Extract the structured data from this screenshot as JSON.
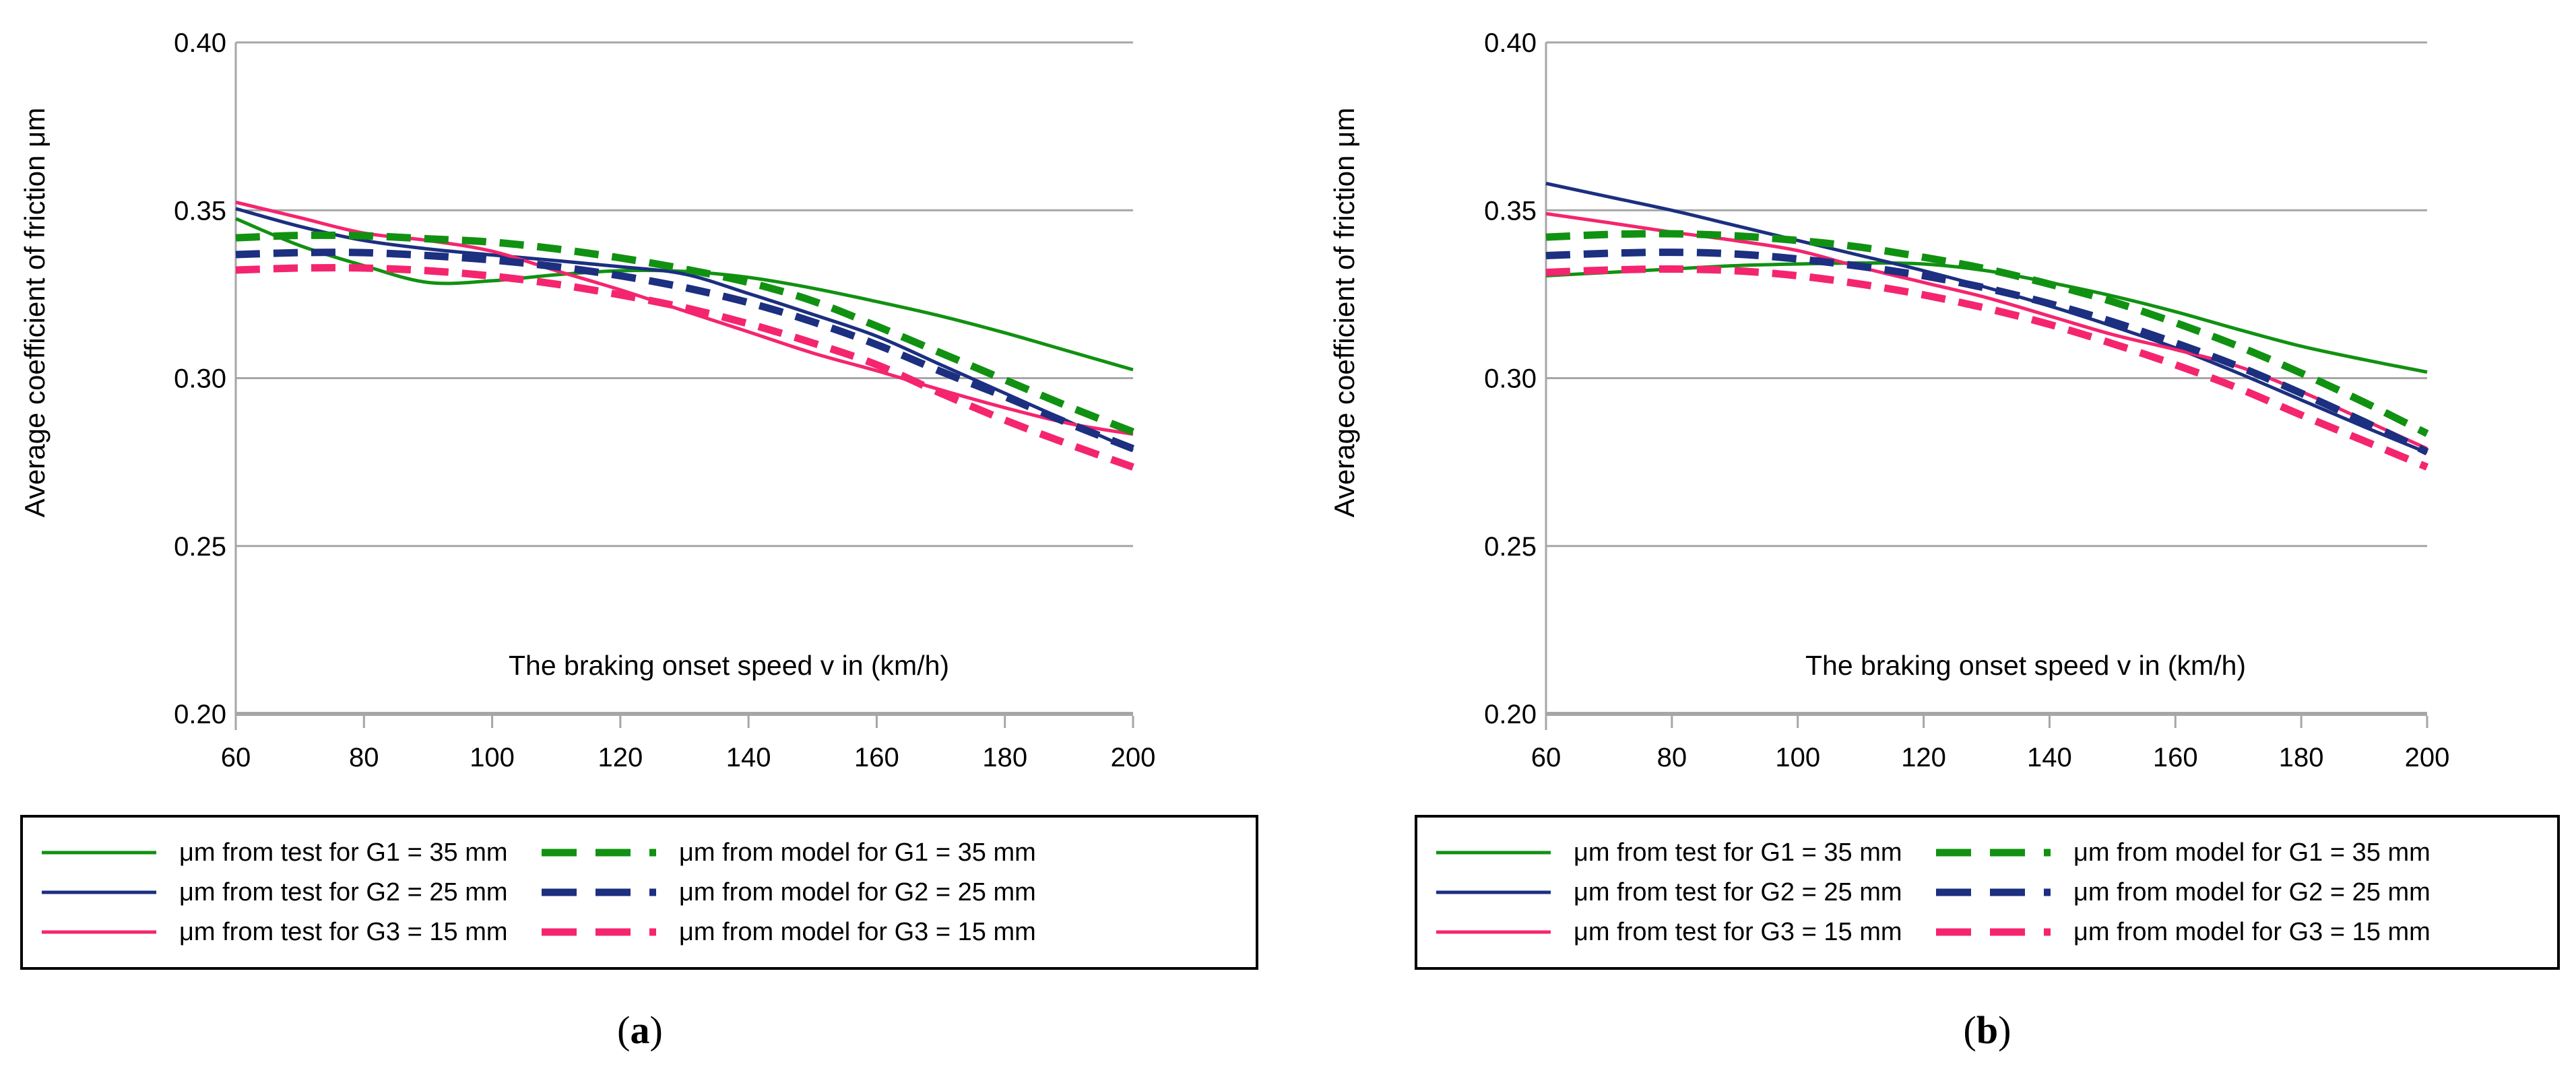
{
  "colors": {
    "green": "#119111",
    "navy": "#1c2f80",
    "pink": "#f4256e",
    "grid": "#a6a6a6",
    "text": "#000000"
  },
  "legend": {
    "test": [
      {
        "label": "μm from test for G1 = 35 mm",
        "color": "green",
        "style": "solid"
      },
      {
        "label": "μm from test for G2 = 25 mm",
        "color": "navy",
        "style": "solid"
      },
      {
        "label": "μm from test for G3 = 15 mm",
        "color": "pink",
        "style": "solid"
      }
    ],
    "model": [
      {
        "label": "μm from model for G1 = 35 mm",
        "color": "green",
        "style": "dashed"
      },
      {
        "label": "μm from model for G2 = 25 mm",
        "color": "navy",
        "style": "dashed"
      },
      {
        "label": "μm from model for G3 = 15 mm",
        "color": "pink",
        "style": "dashed"
      }
    ]
  },
  "chart_data": [
    {
      "id": "a",
      "type": "line",
      "caption": {
        "open": "(",
        "letter": "a",
        "close": ")"
      },
      "xlabel": "The braking onset speed v in (km/h)",
      "ylabel": "Average coefficient of friction μm",
      "xlim": [
        60,
        200
      ],
      "ylim": [
        0.2,
        0.4
      ],
      "x_ticks": [
        60,
        80,
        100,
        120,
        140,
        160,
        180,
        200
      ],
      "y_ticks": [
        0.4,
        0.35,
        0.3,
        0.25,
        0.2
      ],
      "grid": true,
      "legend_position": "bottom",
      "x": [
        60,
        70,
        80,
        90,
        100,
        110,
        120,
        130,
        140,
        150,
        160,
        170,
        180,
        190,
        200
      ],
      "series": [
        {
          "name": "μm from test for G1 = 35 mm",
          "color": "green",
          "style": "solid",
          "values": [
            0.3475,
            0.3395,
            0.3335,
            0.3285,
            0.329,
            0.3308,
            0.332,
            0.3318,
            0.33,
            0.3268,
            0.3228,
            0.3185,
            0.3135,
            0.308,
            0.3025
          ]
        },
        {
          "name": "μm from test for G2 = 25 mm",
          "color": "navy",
          "style": "solid",
          "values": [
            0.3505,
            0.3452,
            0.341,
            0.3385,
            0.3367,
            0.335,
            0.3332,
            0.331,
            0.3252,
            0.319,
            0.3125,
            0.304,
            0.2955,
            0.287,
            0.2785
          ]
        },
        {
          "name": "μm from test for G3 = 15 mm",
          "color": "pink",
          "style": "solid",
          "values": [
            0.3524,
            0.3478,
            0.3432,
            0.341,
            0.3378,
            0.332,
            0.3263,
            0.32,
            0.3138,
            0.3075,
            0.3022,
            0.2965,
            0.2912,
            0.2865,
            0.2833
          ]
        },
        {
          "name": "μm from model for G1 = 35 mm",
          "color": "green",
          "style": "dashed",
          "values": [
            0.3418,
            0.3425,
            0.3424,
            0.3415,
            0.3405,
            0.3385,
            0.3358,
            0.3325,
            0.3285,
            0.323,
            0.3155,
            0.3075,
            0.2995,
            0.2915,
            0.284
          ]
        },
        {
          "name": "μm from model for G2 = 25 mm",
          "color": "navy",
          "style": "dashed",
          "values": [
            0.3368,
            0.3374,
            0.3374,
            0.3365,
            0.3352,
            0.3332,
            0.3305,
            0.327,
            0.3225,
            0.3168,
            0.31,
            0.302,
            0.2945,
            0.2865,
            0.279
          ]
        },
        {
          "name": "μm from model for G3 = 15 mm",
          "color": "pink",
          "style": "dashed",
          "values": [
            0.3322,
            0.3328,
            0.3328,
            0.332,
            0.3304,
            0.328,
            0.3248,
            0.321,
            0.3162,
            0.3105,
            0.304,
            0.2955,
            0.2875,
            0.2803,
            0.2735
          ]
        }
      ]
    },
    {
      "id": "b",
      "type": "line",
      "caption": {
        "open": "(",
        "letter": "b",
        "close": ")"
      },
      "xlabel": "The braking onset speed v in (km/h)",
      "ylabel": "Average coefficient of friction μm",
      "xlim": [
        60,
        200
      ],
      "ylim": [
        0.2,
        0.4
      ],
      "x_ticks": [
        60,
        80,
        100,
        120,
        140,
        160,
        180,
        200
      ],
      "y_ticks": [
        0.4,
        0.35,
        0.3,
        0.25,
        0.2
      ],
      "grid": true,
      "legend_position": "bottom",
      "x": [
        60,
        70,
        80,
        90,
        100,
        110,
        120,
        130,
        140,
        150,
        160,
        170,
        180,
        190,
        200
      ],
      "series": [
        {
          "name": "μm from test for G1 = 35 mm",
          "color": "green",
          "style": "solid",
          "values": [
            0.3305,
            0.3315,
            0.3325,
            0.3335,
            0.334,
            0.3343,
            0.334,
            0.332,
            0.3285,
            0.3245,
            0.3198,
            0.3145,
            0.3095,
            0.3055,
            0.3018
          ]
        },
        {
          "name": "μm from test for G2 = 25 mm",
          "color": "navy",
          "style": "solid",
          "values": [
            0.358,
            0.354,
            0.35,
            0.3455,
            0.341,
            0.3365,
            0.332,
            0.327,
            0.3215,
            0.3155,
            0.309,
            0.3015,
            0.2935,
            0.2855,
            0.2778
          ]
        },
        {
          "name": "μm from test for G3 = 15 mm",
          "color": "pink",
          "style": "solid",
          "values": [
            0.349,
            0.3463,
            0.3435,
            0.341,
            0.338,
            0.333,
            0.3285,
            0.324,
            0.3185,
            0.313,
            0.3085,
            0.3035,
            0.296,
            0.2875,
            0.279
          ]
        },
        {
          "name": "μm from model for G1 = 35 mm",
          "color": "green",
          "style": "dashed",
          "values": [
            0.342,
            0.3428,
            0.343,
            0.3424,
            0.341,
            0.339,
            0.336,
            0.3325,
            0.328,
            0.3228,
            0.3165,
            0.3095,
            0.3015,
            0.2928,
            0.2835
          ]
        },
        {
          "name": "μm from model for G2 = 25 mm",
          "color": "navy",
          "style": "dashed",
          "values": [
            0.3365,
            0.3372,
            0.3375,
            0.337,
            0.3355,
            0.3333,
            0.3305,
            0.3268,
            0.3222,
            0.3168,
            0.3105,
            0.3035,
            0.2955,
            0.287,
            0.278
          ]
        },
        {
          "name": "μm from model for G3 = 15 mm",
          "color": "pink",
          "style": "dashed",
          "values": [
            0.3315,
            0.3322,
            0.3325,
            0.332,
            0.3305,
            0.328,
            0.3248,
            0.3208,
            0.316,
            0.3103,
            0.304,
            0.297,
            0.289,
            0.2813,
            0.2735
          ]
        }
      ]
    }
  ]
}
